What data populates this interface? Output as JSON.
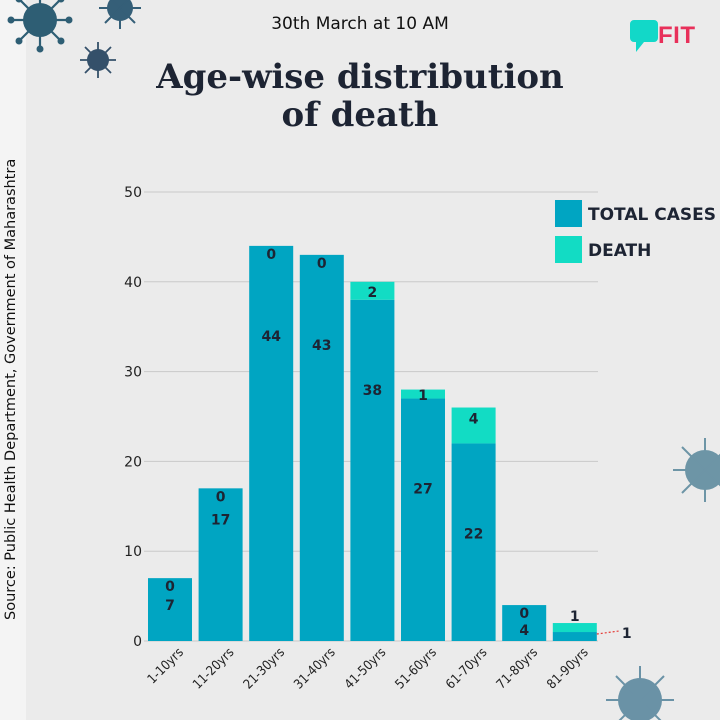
{
  "header": {
    "date": "30th March at 10 AM",
    "title_line1": "Age-wise distribution",
    "title_line2": "of death",
    "logo_text": "FIT"
  },
  "source": "Source: Public Health Department, Government of Maharashtra",
  "colors": {
    "total_cases": "#00a5c2",
    "death": "#12dcc4",
    "background": "#ebebeb",
    "logo": "#e8305a",
    "leader_line": "#e53935"
  },
  "chart_data": {
    "type": "bar",
    "stacked": true,
    "categories": [
      "1-10yrs",
      "11-20yrs",
      "21-30yrs",
      "31-40yrs",
      "41-50yrs",
      "51-60yrs",
      "61-70yrs",
      "71-80yrs",
      "81-90yrs"
    ],
    "series": [
      {
        "name": "TOTAL CASES",
        "values": [
          7,
          17,
          44,
          43,
          38,
          27,
          22,
          4,
          1
        ]
      },
      {
        "name": "DEATH",
        "values": [
          0,
          0,
          0,
          0,
          2,
          1,
          4,
          0,
          1
        ]
      }
    ],
    "ylim": [
      0,
      50
    ],
    "yticks": [
      0,
      10,
      20,
      30,
      40,
      50
    ],
    "grid": true,
    "legend_position": "top-right",
    "outside_label": "1"
  }
}
